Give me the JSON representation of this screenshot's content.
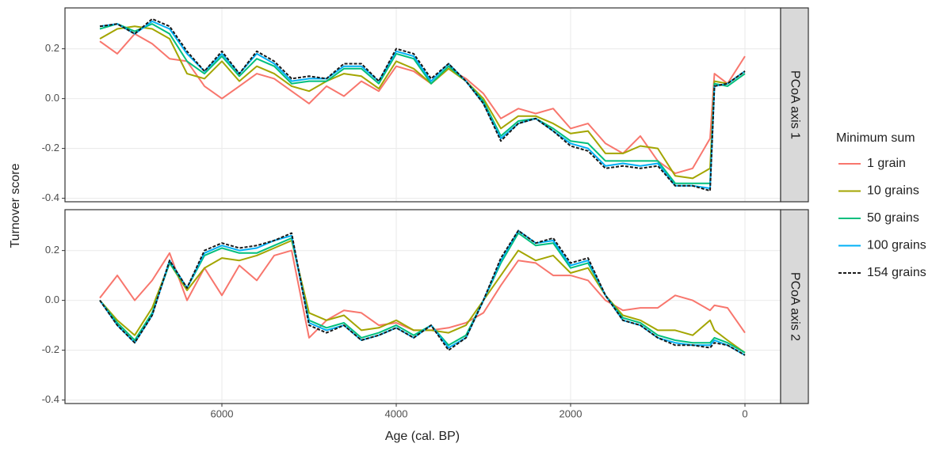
{
  "chart_data": {
    "type": "line",
    "xlabel": "Age (cal. BP)",
    "ylabel": "Turnover score",
    "legend_title": "Minimum sum",
    "x": [
      7400,
      7200,
      7000,
      6800,
      6600,
      6400,
      6200,
      6000,
      5800,
      5600,
      5400,
      5200,
      5000,
      4800,
      4600,
      4400,
      4200,
      4000,
      3800,
      3600,
      3400,
      3200,
      3000,
      2800,
      2600,
      2400,
      2200,
      2000,
      1800,
      1600,
      1400,
      1200,
      1000,
      800,
      600,
      400,
      350,
      200,
      0
    ],
    "xlim": [
      7800,
      -409
    ],
    "xticks": [
      6000,
      4000,
      2000,
      0
    ],
    "ylim": [
      -0.414,
      0.364
    ],
    "yticks": [
      -0.4,
      -0.2,
      {
        "value": 0,
        "label": "0.0"
      },
      0.2
    ],
    "grid": true,
    "series": [
      {
        "name": "1 grain",
        "color": "#F8766D",
        "dash": false
      },
      {
        "name": "10 grains",
        "color": "#A3A500",
        "dash": false
      },
      {
        "name": "50 grains",
        "color": "#00BF7D",
        "dash": false
      },
      {
        "name": "100 grains",
        "color": "#00B0F6",
        "dash": false
      },
      {
        "name": "154 grains",
        "color": "#1a1a1a",
        "dash": true
      }
    ],
    "panels": [
      {
        "label": "PCoA axis 1",
        "values": [
          [
            0.23,
            0.18,
            0.26,
            0.22,
            0.16,
            0.15,
            0.05,
            0.0,
            0.05,
            0.1,
            0.08,
            0.03,
            -0.02,
            0.05,
            0.01,
            0.07,
            0.03,
            0.13,
            0.11,
            0.06,
            0.12,
            0.08,
            0.02,
            -0.08,
            -0.04,
            -0.06,
            -0.04,
            -0.12,
            -0.1,
            -0.18,
            -0.22,
            -0.15,
            -0.25,
            -0.3,
            -0.28,
            -0.16,
            0.1,
            0.06,
            0.17
          ],
          [
            0.24,
            0.28,
            0.29,
            0.28,
            0.24,
            0.1,
            0.08,
            0.15,
            0.07,
            0.13,
            0.1,
            0.05,
            0.03,
            0.07,
            0.1,
            0.09,
            0.04,
            0.15,
            0.12,
            0.06,
            0.12,
            0.07,
            0.0,
            -0.12,
            -0.07,
            -0.07,
            -0.1,
            -0.14,
            -0.13,
            -0.22,
            -0.22,
            -0.19,
            -0.2,
            -0.31,
            -0.32,
            -0.28,
            0.07,
            0.06,
            0.11
          ],
          [
            0.28,
            0.3,
            0.27,
            0.3,
            0.26,
            0.15,
            0.1,
            0.17,
            0.09,
            0.16,
            0.13,
            0.06,
            0.07,
            0.07,
            0.12,
            0.12,
            0.06,
            0.18,
            0.16,
            0.06,
            0.13,
            0.07,
            -0.01,
            -0.15,
            -0.09,
            -0.08,
            -0.12,
            -0.17,
            -0.18,
            -0.25,
            -0.25,
            -0.25,
            -0.25,
            -0.34,
            -0.34,
            -0.34,
            0.06,
            0.05,
            0.1
          ],
          [
            0.29,
            0.3,
            0.26,
            0.31,
            0.28,
            0.18,
            0.11,
            0.18,
            0.1,
            0.18,
            0.14,
            0.07,
            0.08,
            0.08,
            0.13,
            0.13,
            0.07,
            0.19,
            0.17,
            0.07,
            0.14,
            0.07,
            -0.02,
            -0.16,
            -0.1,
            -0.08,
            -0.13,
            -0.18,
            -0.2,
            -0.27,
            -0.26,
            -0.27,
            -0.26,
            -0.35,
            -0.35,
            -0.36,
            0.05,
            0.06,
            0.11
          ],
          [
            0.29,
            0.3,
            0.26,
            0.32,
            0.29,
            0.19,
            0.11,
            0.19,
            0.1,
            0.19,
            0.15,
            0.08,
            0.09,
            0.08,
            0.14,
            0.14,
            0.07,
            0.2,
            0.18,
            0.08,
            0.14,
            0.07,
            -0.02,
            -0.17,
            -0.1,
            -0.08,
            -0.13,
            -0.19,
            -0.21,
            -0.28,
            -0.27,
            -0.28,
            -0.27,
            -0.35,
            -0.35,
            -0.37,
            0.05,
            0.06,
            0.11
          ]
        ]
      },
      {
        "label": "PCoA axis 2",
        "values": [
          [
            0.01,
            0.1,
            0.0,
            0.08,
            0.19,
            0.0,
            0.13,
            0.02,
            0.14,
            0.08,
            0.18,
            0.2,
            -0.15,
            -0.08,
            -0.04,
            -0.05,
            -0.1,
            -0.09,
            -0.12,
            -0.12,
            -0.11,
            -0.09,
            -0.05,
            0.06,
            0.16,
            0.15,
            0.1,
            0.1,
            0.08,
            0.0,
            -0.04,
            -0.03,
            -0.03,
            0.02,
            0.0,
            -0.04,
            -0.02,
            -0.03,
            -0.13
          ],
          [
            0.0,
            -0.08,
            -0.14,
            -0.03,
            0.15,
            0.04,
            0.13,
            0.17,
            0.16,
            0.18,
            0.21,
            0.24,
            -0.05,
            -0.08,
            -0.06,
            -0.12,
            -0.11,
            -0.08,
            -0.12,
            -0.12,
            -0.13,
            -0.1,
            0.0,
            0.1,
            0.2,
            0.16,
            0.18,
            0.11,
            0.13,
            0.02,
            -0.06,
            -0.08,
            -0.12,
            -0.12,
            -0.14,
            -0.08,
            -0.12,
            -0.16,
            -0.21
          ],
          [
            0.0,
            -0.09,
            -0.16,
            -0.05,
            0.15,
            0.05,
            0.18,
            0.21,
            0.19,
            0.19,
            0.22,
            0.25,
            -0.08,
            -0.11,
            -0.09,
            -0.15,
            -0.13,
            -0.1,
            -0.14,
            -0.1,
            -0.18,
            -0.14,
            0.0,
            0.15,
            0.27,
            0.22,
            0.23,
            0.13,
            0.15,
            0.02,
            -0.07,
            -0.09,
            -0.14,
            -0.16,
            -0.17,
            -0.17,
            -0.15,
            -0.17,
            -0.21
          ],
          [
            0.0,
            -0.1,
            -0.17,
            -0.06,
            0.16,
            0.05,
            0.19,
            0.22,
            0.2,
            0.21,
            0.24,
            0.26,
            -0.09,
            -0.12,
            -0.1,
            -0.16,
            -0.14,
            -0.11,
            -0.15,
            -0.1,
            -0.19,
            -0.15,
            0.0,
            0.16,
            0.28,
            0.23,
            0.24,
            0.14,
            0.16,
            0.02,
            -0.08,
            -0.1,
            -0.15,
            -0.17,
            -0.18,
            -0.18,
            -0.16,
            -0.18,
            -0.22
          ],
          [
            0.0,
            -0.1,
            -0.17,
            -0.06,
            0.16,
            0.05,
            0.2,
            0.23,
            0.21,
            0.22,
            0.24,
            0.27,
            -0.1,
            -0.13,
            -0.1,
            -0.16,
            -0.14,
            -0.11,
            -0.15,
            -0.1,
            -0.2,
            -0.15,
            0.0,
            0.17,
            0.28,
            0.23,
            0.25,
            0.15,
            0.17,
            0.02,
            -0.08,
            -0.1,
            -0.15,
            -0.18,
            -0.18,
            -0.19,
            -0.17,
            -0.18,
            -0.22
          ]
        ]
      }
    ]
  }
}
